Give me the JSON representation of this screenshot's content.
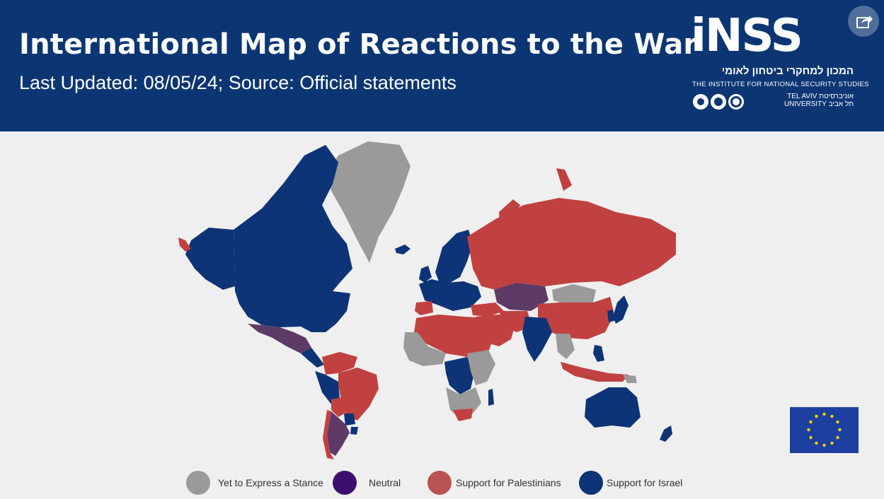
{
  "header": {
    "title": "International Map of Reactions to the War",
    "subtitle": "Last Updated: 08/05/24; Source: Official statements"
  },
  "logo": {
    "wordmark": "iNSS",
    "hebrew": "המכון למחקרי ביטחון לאומי",
    "english": "THE INSTITUTE FOR NATIONAL SECURITY STUDIES",
    "tau_line1": "TEL AVIV אוניברסיטת",
    "tau_line2": "UNIVERSITY תל אביב"
  },
  "icons": {
    "share": "share-icon",
    "eu_flag": "eu-flag-icon"
  },
  "colors": {
    "header_bg": "#0c3673",
    "stance_none": "#9a9a9a",
    "neutral": "#5e3a66",
    "palestinians": "#c0413f",
    "israel": "#0d3476",
    "legend_neutral": "#3c0f6e",
    "legend_palestinians": "#b95352"
  },
  "legend": [
    {
      "label": "Yet to Express a Stance",
      "color": "#9a9a9a"
    },
    {
      "label": "Neutral",
      "color": "#3c0f6e"
    },
    {
      "label": "Support for Palestinians",
      "color": "#b95352"
    },
    {
      "label": "Support for Israel",
      "color": "#0d3476"
    }
  ]
}
